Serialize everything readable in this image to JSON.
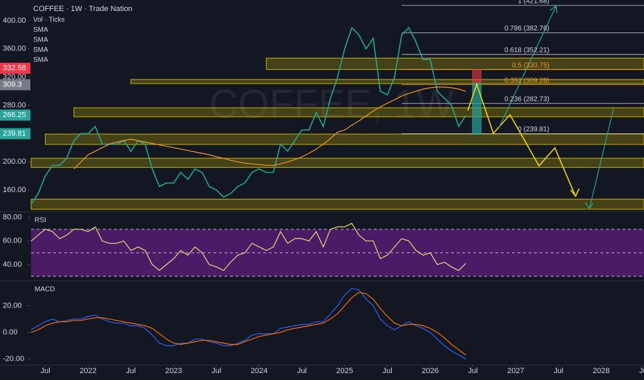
{
  "chart_data": [
    {
      "type": "line",
      "title": "COFFEE · 1W · Trade Nation",
      "watermark": "COFFEE, 1W",
      "indicators": [
        "Vol · Ticks",
        "SMA",
        "SMA",
        "SMA",
        "SMA"
      ],
      "x": [
        "2021-05",
        "2021-06",
        "2021-07",
        "2021-08",
        "2021-09",
        "2021-10",
        "2021-11",
        "2021-12",
        "2022-01",
        "2022-02",
        "2022-03",
        "2022-04",
        "2022-05",
        "2022-06",
        "2022-07",
        "2022-08",
        "2022-09",
        "2022-10",
        "2022-11",
        "2022-12",
        "2023-01",
        "2023-02",
        "2023-03",
        "2023-04",
        "2023-05",
        "2023-06",
        "2023-07",
        "2023-08",
        "2023-09",
        "2023-10",
        "2023-11",
        "2023-12",
        "2024-01",
        "2024-02",
        "2024-03",
        "2024-04",
        "2024-05",
        "2024-06",
        "2024-07",
        "2024-08",
        "2024-09",
        "2024-10",
        "2024-11",
        "2024-12",
        "2025-01",
        "2025-02",
        "2025-03",
        "2025-04",
        "2025-05",
        "2025-06",
        "2025-07",
        "2025-08",
        "2025-09",
        "2025-10",
        "2025-11",
        "2025-12",
        "2026-01",
        "2026-02",
        "2026-03",
        "2026-04",
        "2026-05",
        "2026-06"
      ],
      "series": [
        {
          "color": "#26a69a",
          "values": [
            140,
            155,
            180,
            195,
            195,
            205,
            230,
            240,
            240,
            250,
            225,
            225,
            225,
            230,
            215,
            230,
            225,
            190,
            165,
            170,
            170,
            185,
            175,
            190,
            185,
            165,
            160,
            150,
            155,
            165,
            170,
            185,
            190,
            185,
            185,
            225,
            215,
            230,
            245,
            245,
            270,
            250,
            290,
            320,
            360,
            390,
            380,
            360,
            375,
            300,
            295,
            320,
            380,
            390,
            370,
            345,
            345,
            300,
            290,
            280,
            250,
            266
          ]
        },
        {
          "color": "#f59b1f",
          "values": [
            null,
            null,
            null,
            null,
            null,
            null,
            190,
            200,
            210,
            215,
            220,
            225,
            228,
            230,
            232,
            230,
            228,
            226,
            224,
            222,
            220,
            218,
            216,
            214,
            212,
            210,
            207,
            205,
            202,
            200,
            198,
            197,
            196,
            195,
            195,
            197,
            200,
            203,
            207,
            212,
            218,
            225,
            233,
            242,
            245,
            252,
            258,
            265,
            272,
            278,
            283,
            288,
            293,
            297,
            300,
            303,
            305,
            306,
            306,
            305,
            303,
            300
          ]
        }
      ],
      "ylim": [
        130.6,
        429.4
      ],
      "yticks": [
        {
          "value": 400,
          "label": "400.00"
        },
        {
          "value": 360,
          "label": "360.00"
        },
        {
          "value": 320,
          "label": "320.00"
        },
        {
          "value": 280,
          "label": "280.00"
        },
        {
          "value": 200,
          "label": "200.00"
        },
        {
          "value": 160,
          "label": "160.00"
        }
      ],
      "price_badges": [
        {
          "value": 332.58,
          "color": "#f23645"
        },
        {
          "value": 309.3,
          "color": "#787b86"
        },
        {
          "value": 266.25,
          "color": "#26a69a"
        },
        {
          "value": 239.81,
          "color": "#26a69a"
        }
      ],
      "fib_levels": [
        {
          "value": 421.68,
          "label": "1 (421.68)",
          "color": "#d1d4dc"
        },
        {
          "value": 382.76,
          "label": "0.786 (382.76)",
          "color": "#d1d4dc"
        },
        {
          "value": 352.21,
          "label": "0.618 (352.21)",
          "color": "#d1d4dc"
        },
        {
          "value": 330.75,
          "label": "0.5 (330.75)",
          "color": "#f59b1f"
        },
        {
          "value": 309.28,
          "label": "0.382 (309.28)",
          "color": "#f59b1f"
        },
        {
          "value": 282.73,
          "label": "0.236 (282.73)",
          "color": "#d1d4dc"
        },
        {
          "value": 239.81,
          "label": "0 (239.81)",
          "color": "#d1d4dc"
        }
      ],
      "fib_start": "2025-09",
      "zones": [
        {
          "start": "2024-02",
          "low": 331,
          "high": 347
        },
        {
          "start": "2022-07",
          "low": 310.9,
          "high": 316.7
        },
        {
          "start": "2021-11",
          "low": 263.8,
          "high": 276.6
        },
        {
          "start": "2021-07",
          "low": 224.6,
          "high": 239.3
        },
        {
          "start": "2021-05",
          "low": 192,
          "high": 205
        },
        {
          "start": "2021-05",
          "low": 132.7,
          "high": 147
        }
      ],
      "zone_color": "#c8b400"
    },
    {
      "type": "line",
      "title": "RSI",
      "x": [
        "2021-05",
        "2021-06",
        "2021-07",
        "2021-08",
        "2021-09",
        "2021-10",
        "2021-11",
        "2021-12",
        "2022-01",
        "2022-02",
        "2022-03",
        "2022-04",
        "2022-05",
        "2022-06",
        "2022-07",
        "2022-08",
        "2022-09",
        "2022-10",
        "2022-11",
        "2022-12",
        "2023-01",
        "2023-02",
        "2023-03",
        "2023-04",
        "2023-05",
        "2023-06",
        "2023-07",
        "2023-08",
        "2023-09",
        "2023-10",
        "2023-11",
        "2023-12",
        "2024-01",
        "2024-02",
        "2024-03",
        "2024-04",
        "2024-05",
        "2024-06",
        "2024-07",
        "2024-08",
        "2024-09",
        "2024-10",
        "2024-11",
        "2024-12",
        "2025-01",
        "2025-02",
        "2025-03",
        "2025-04",
        "2025-05",
        "2025-06",
        "2025-07",
        "2025-08",
        "2025-09",
        "2025-10",
        "2025-11",
        "2025-12",
        "2026-01",
        "2026-02",
        "2026-03",
        "2026-04",
        "2026-05",
        "2026-06"
      ],
      "series": [
        {
          "color": "#f5d76e",
          "values": [
            60,
            65,
            70,
            68,
            62,
            65,
            70,
            70,
            68,
            72,
            60,
            58,
            58,
            60,
            52,
            55,
            52,
            40,
            35,
            40,
            45,
            52,
            48,
            55,
            50,
            40,
            38,
            35,
            42,
            48,
            50,
            58,
            55,
            52,
            55,
            68,
            58,
            62,
            62,
            60,
            68,
            55,
            70,
            72,
            72,
            75,
            65,
            60,
            60,
            45,
            48,
            55,
            62,
            60,
            52,
            48,
            50,
            40,
            42,
            38,
            35,
            41
          ]
        }
      ],
      "band": [
        30,
        70
      ],
      "midline": 50,
      "band_color": "#7b1fa2",
      "ylim": [
        27,
        84
      ],
      "yticks": [
        {
          "value": 80,
          "label": "80.00"
        },
        {
          "value": 60,
          "label": "60.00"
        },
        {
          "value": 40,
          "label": "40.00"
        }
      ]
    },
    {
      "type": "line",
      "title": "MACD",
      "x": [
        "2021-05",
        "2021-06",
        "2021-07",
        "2021-08",
        "2021-09",
        "2021-10",
        "2021-11",
        "2021-12",
        "2022-01",
        "2022-02",
        "2022-03",
        "2022-04",
        "2022-05",
        "2022-06",
        "2022-07",
        "2022-08",
        "2022-09",
        "2022-10",
        "2022-11",
        "2022-12",
        "2023-01",
        "2023-02",
        "2023-03",
        "2023-04",
        "2023-05",
        "2023-06",
        "2023-07",
        "2023-08",
        "2023-09",
        "2023-10",
        "2023-11",
        "2023-12",
        "2024-01",
        "2024-02",
        "2024-03",
        "2024-04",
        "2024-05",
        "2024-06",
        "2024-07",
        "2024-08",
        "2024-09",
        "2024-10",
        "2024-11",
        "2024-12",
        "2025-01",
        "2025-02",
        "2025-03",
        "2025-04",
        "2025-05",
        "2025-06",
        "2025-07",
        "2025-08",
        "2025-09",
        "2025-10",
        "2025-11",
        "2025-12",
        "2026-01",
        "2026-02",
        "2026-03",
        "2026-04",
        "2026-05",
        "2026-06"
      ],
      "series": [
        {
          "color": "#2962ff",
          "values": [
            2,
            5,
            8,
            10,
            8,
            9,
            10,
            10,
            12,
            13,
            10,
            8,
            7,
            7,
            5,
            5,
            3,
            -2,
            -8,
            -10,
            -10,
            -8,
            -8,
            -5,
            -5,
            -7,
            -8,
            -10,
            -10,
            -8,
            -6,
            -2,
            -1,
            -1,
            -1,
            3,
            4,
            5,
            6,
            6,
            8,
            8,
            14,
            20,
            28,
            33,
            32,
            25,
            20,
            10,
            5,
            2,
            5,
            8,
            5,
            3,
            0,
            -5,
            -10,
            -14,
            -17,
            -20
          ]
        },
        {
          "color": "#ff6d00",
          "values": [
            0,
            2,
            5,
            7,
            8,
            8,
            9,
            9,
            10,
            11,
            11,
            10,
            9,
            8,
            7,
            6,
            5,
            3,
            -1,
            -5,
            -8,
            -9,
            -8,
            -7,
            -6,
            -6,
            -7,
            -8,
            -9,
            -9,
            -7,
            -5,
            -3,
            -2,
            -1,
            0,
            2,
            3,
            4,
            5,
            6,
            7,
            10,
            14,
            20,
            26,
            30,
            29,
            25,
            18,
            12,
            7,
            5,
            6,
            6,
            5,
            3,
            0,
            -4,
            -9,
            -13,
            -17
          ]
        }
      ],
      "ylim": [
        -24.3,
        37.9
      ],
      "yticks": [
        {
          "value": 20,
          "label": "20.00"
        },
        {
          "value": 0,
          "label": "0.00"
        },
        {
          "value": -20,
          "label": "-20.00"
        }
      ]
    }
  ],
  "x_axis": {
    "xlim": [
      "2021-05",
      "2028-07"
    ],
    "xticks": [
      {
        "value": "2021-07",
        "label": "Jul"
      },
      {
        "value": "2022-01",
        "label": "2022"
      },
      {
        "value": "2022-07",
        "label": "Jul"
      },
      {
        "value": "2023-01",
        "label": "2023"
      },
      {
        "value": "2023-07",
        "label": "Jul"
      },
      {
        "value": "2024-01",
        "label": "2024"
      },
      {
        "value": "2024-07",
        "label": "Jul"
      },
      {
        "value": "2025-01",
        "label": "2025"
      },
      {
        "value": "2025-07",
        "label": "Jul"
      },
      {
        "value": "2026-01",
        "label": "2026"
      },
      {
        "value": "2026-07",
        "label": "Jul"
      },
      {
        "value": "2027-01",
        "label": "2027"
      },
      {
        "value": "2027-07",
        "label": "Jul"
      },
      {
        "value": "2028-01",
        "label": "2028"
      },
      {
        "value": "2028-07",
        "label": "Jul"
      }
    ]
  }
}
